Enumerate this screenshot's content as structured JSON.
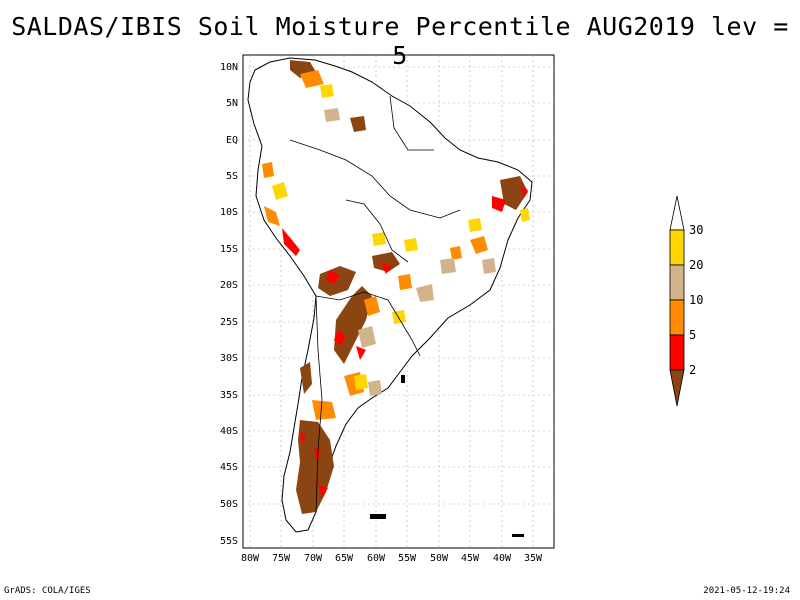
{
  "title": "SALDAS/IBIS Soil Moisture Percentile AUG2019 lev = 5",
  "map": {
    "lat_labels": [
      "10N",
      "5N",
      "EQ",
      "5S",
      "10S",
      "15S",
      "20S",
      "25S",
      "30S",
      "35S",
      "40S",
      "45S",
      "50S",
      "55S"
    ],
    "lon_labels": [
      "80W",
      "75W",
      "70W",
      "65W",
      "60W",
      "55W",
      "50W",
      "45W",
      "40W",
      "35W"
    ]
  },
  "legend": {
    "levels": [
      "2",
      "5",
      "10",
      "20",
      "30"
    ],
    "colors": {
      "below_2": "#8b4513",
      "2_5": "#ff0000",
      "5_10": "#ff8c00",
      "10_20": "#d2b48c",
      "20_30": "#ffd700",
      "above_30": "#ffffff"
    }
  },
  "footer": {
    "left": "GrADS: COLA/IGES",
    "right": "2021-05-12-19:24"
  }
}
